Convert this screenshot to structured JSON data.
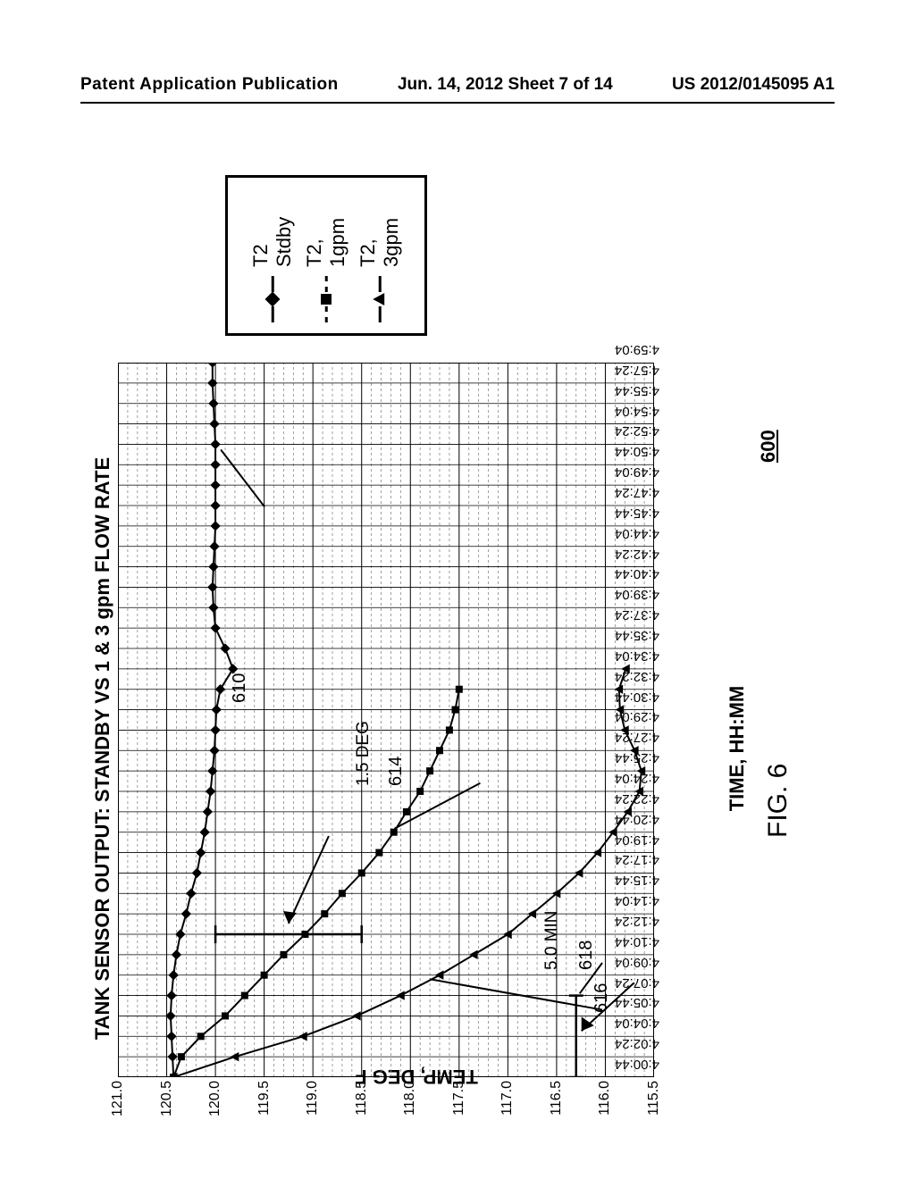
{
  "header": {
    "left": "Patent Application Publication",
    "center": "Jun. 14, 2012  Sheet 7 of 14",
    "right": "US 2012/0145095 A1"
  },
  "figure_label": "FIG. 6",
  "figure_num_600": "600",
  "chart": {
    "type": "line-scatter",
    "title": "TANK SENSOR OUTPUT: STANDBY VS 1 & 3 gpm FLOW RATE",
    "xlabel": "TIME, HH:MM",
    "ylabel": "TEMP, DEG F",
    "ylim": [
      115.5,
      121.0
    ],
    "ytick_step": 0.5,
    "yticks": [
      "115.5",
      "116.0",
      "116.5",
      "117.0",
      "117.5",
      "118.0",
      "118.5",
      "119.0",
      "119.5",
      "120.0",
      "120.5",
      "121.0"
    ],
    "xticks": [
      "4:00:44",
      "4:02:24",
      "4:04:04",
      "4:05:44",
      "4:07:24",
      "4:09:04",
      "4:10:44",
      "4:12:24",
      "4:14:04",
      "4:15:44",
      "4:17:24",
      "4:19:04",
      "4:20:44",
      "4:22:24",
      "4:24:04",
      "4:25:44",
      "4:27:24",
      "4:29:04",
      "4:30:44",
      "4:32:24",
      "4:34:04",
      "4:35:44",
      "4:37:24",
      "4:39:04",
      "4:40:44",
      "4:42:24",
      "4:44:04",
      "4:45:44",
      "4:47:24",
      "4:49:04",
      "4:50:44",
      "4:52:24",
      "4:54:04",
      "4:55:44",
      "4:57:24",
      "4:59:04"
    ],
    "xlim_index": [
      0,
      35
    ],
    "background_color": "#ffffff",
    "grid_major_color": "#000000",
    "grid_minor_color": "#888888",
    "grid_minor_dash": "3,3",
    "axis_color": "#000000",
    "marker_color": "#000000",
    "line_color": "#000000",
    "line_width": 2,
    "marker_size": 8,
    "series": [
      {
        "name": "T2 Stdby",
        "marker": "diamond",
        "y": [
          120.43,
          120.44,
          120.45,
          120.46,
          120.45,
          120.43,
          120.4,
          120.36,
          120.3,
          120.25,
          120.19,
          120.15,
          120.11,
          120.08,
          120.05,
          120.03,
          120.01,
          120.0,
          119.99,
          119.95,
          119.82,
          119.9,
          120.0,
          120.02,
          120.03,
          120.02,
          120.01,
          120.0,
          120.0,
          120.0,
          120.0,
          120.0,
          120.01,
          120.02,
          120.03,
          120.03
        ]
      },
      {
        "name": "T2, 1gpm",
        "marker": "square",
        "y": [
          120.43,
          120.35,
          120.15,
          119.9,
          119.7,
          119.5,
          119.3,
          119.08,
          118.88,
          118.7,
          118.5,
          118.32,
          118.17,
          118.04,
          117.9,
          117.8,
          117.7,
          117.6,
          117.54,
          117.5
        ]
      },
      {
        "name": "T2, 3gpm",
        "marker": "triangle",
        "y": [
          120.43,
          119.8,
          119.1,
          118.55,
          118.1,
          117.7,
          117.35,
          117.0,
          116.75,
          116.5,
          116.27,
          116.08,
          115.92,
          115.77,
          115.65,
          115.63,
          115.7,
          115.8,
          115.85,
          115.86,
          115.79
        ]
      }
    ],
    "legend_labels": [
      "T2 Stdby",
      "T2, 1gpm",
      "T2, 3gpm"
    ],
    "callouts": {
      "c610": "610",
      "c614": "614",
      "c616": "616",
      "c618": "618"
    },
    "annotations": {
      "deg": "1.5 DEG",
      "min": "5.0 MIN"
    }
  }
}
